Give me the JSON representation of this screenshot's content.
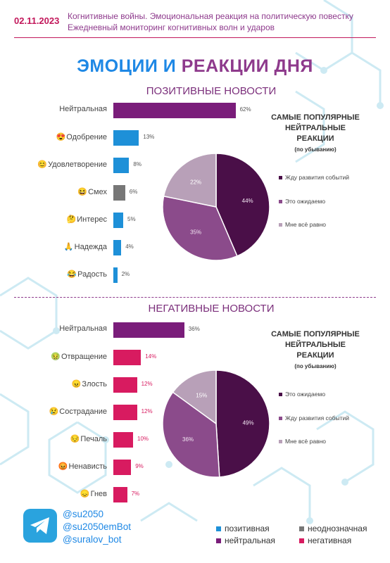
{
  "header": {
    "date": "02.11.2023",
    "line1": "Когнитивные войны. Эмоциональная реакция на политическую повестку",
    "line2": "Ежедневный мониторинг когнитивных волн и ударов"
  },
  "title": {
    "part1": "ЭМОЦИИ И",
    "part2": "РЕАКЦИИ ДНЯ"
  },
  "colors": {
    "positive": "#1e90d8",
    "neutral_bar": "#7a1d7a",
    "ambiguous": "#777777",
    "negative": "#d81b60",
    "pie_dark": "#4a0f48",
    "pie_mid": "#8b4b8b",
    "pie_light": "#b8a0b8"
  },
  "icons": [
    "approval-emoji-icon",
    "satisfaction-emoji-icon",
    "laugh-emoji-icon",
    "interest-emoji-icon",
    "hope-emoji-icon",
    "joy-emoji-icon",
    "disgust-emoji-icon",
    "anger-emoji-icon",
    "compassion-emoji-icon",
    "sadness-emoji-icon",
    "hatred-emoji-icon",
    "grief-emoji-icon",
    "telegram-icon"
  ],
  "positive_section": {
    "title": "ПОЗИТИВНЫЕ НОВОСТИ",
    "popular_title1": "САМЫЕ ПОПУЛЯРНЫЕ",
    "popular_title2": "НЕЙТРАЛЬНЫЕ РЕАКЦИИ",
    "popular_sub": "(по убыванию)"
  },
  "negative_section": {
    "title": "НЕГАТИВНЫЕ НОВОСТИ",
    "popular_title1": "САМЫЕ ПОПУЛЯРНЫЕ",
    "popular_title2": "НЕЙТРАЛЬНЫЕ РЕАКЦИИ",
    "popular_sub": "(по убыванию)"
  },
  "chart_data": [
    {
      "type": "bar",
      "orientation": "horizontal",
      "categories": [
        "Нейтральная",
        "Одобрение",
        "Удовлетворение",
        "Смех",
        "Интерес",
        "Надежда",
        "Радость"
      ],
      "emoji": [
        "",
        "😍",
        "😊",
        "😆",
        "🤔",
        "🙏",
        "😂"
      ],
      "values": [
        62,
        13,
        8,
        6,
        5,
        4,
        2
      ],
      "value_labels": [
        "62%",
        "13%",
        "8%",
        "6%",
        "5%",
        "4%",
        "2%"
      ],
      "bar_colors": [
        "#7a1d7a",
        "#1e90d8",
        "#1e90d8",
        "#777777",
        "#1e90d8",
        "#1e90d8",
        "#1e90d8"
      ],
      "xlim": [
        0,
        100
      ]
    },
    {
      "type": "pie",
      "slices": [
        {
          "label": "Жду развития событий",
          "value": 44,
          "value_label": "44%",
          "color": "#4a0f48"
        },
        {
          "label": "Это ожидаемо",
          "value": 35,
          "value_label": "35%",
          "color": "#8b4b8b"
        },
        {
          "label": "Мне всё равно",
          "value": 22,
          "value_label": "22%",
          "color": "#b8a0b8"
        }
      ]
    },
    {
      "type": "bar",
      "orientation": "horizontal",
      "categories": [
        "Нейтральная",
        "Отвращение",
        "Злость",
        "Сострадание",
        "Печаль",
        "Ненависть",
        "Гнев"
      ],
      "emoji": [
        "",
        "🤢",
        "😠",
        "😢",
        "😔",
        "😡",
        "😞"
      ],
      "values": [
        36,
        14,
        12,
        12,
        10,
        9,
        7
      ],
      "value_labels": [
        "36%",
        "14%",
        "12%",
        "12%",
        "10%",
        "9%",
        "7%"
      ],
      "bar_colors": [
        "#7a1d7a",
        "#d81b60",
        "#d81b60",
        "#d81b60",
        "#d81b60",
        "#d81b60",
        "#d81b60"
      ],
      "xlim": [
        0,
        100
      ]
    },
    {
      "type": "pie",
      "slices": [
        {
          "label": "Это ожидаемо",
          "value": 49,
          "value_label": "49%",
          "color": "#4a0f48"
        },
        {
          "label": "Жду развития событий",
          "value": 36,
          "value_label": "36%",
          "color": "#8b4b8b"
        },
        {
          "label": "Мне всё равно",
          "value": 15,
          "value_label": "15%",
          "color": "#b8a0b8"
        }
      ]
    }
  ],
  "footer": {
    "handles": [
      "@su2050",
      "@su2050emBot",
      "@suralov_bot"
    ],
    "legend": [
      {
        "label": "позитивная",
        "color": "#1e90d8"
      },
      {
        "label": "неоднозначная",
        "color": "#777777"
      },
      {
        "label": "нейтральная",
        "color": "#7a1d7a"
      },
      {
        "label": "негативная",
        "color": "#d81b60"
      }
    ]
  }
}
